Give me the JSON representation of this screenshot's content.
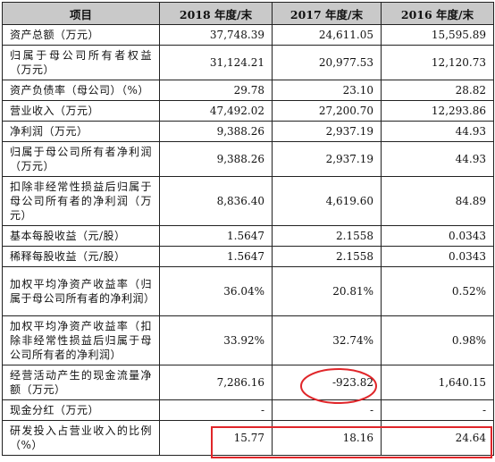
{
  "table": {
    "headers": [
      "项目",
      "2018 年度/末",
      "2017 年度/末",
      "2016 年度/末"
    ],
    "rows": [
      {
        "label": "资产总额（万元）",
        "values": [
          "37,748.39",
          "24,611.05",
          "15,595.89"
        ]
      },
      {
        "label": "归属于母公司所有者权益（万元）",
        "values": [
          "31,124.21",
          "20,977.53",
          "12,120.73"
        ]
      },
      {
        "label": "资产负债率（母公司）（%）",
        "values": [
          "29.78",
          "23.10",
          "28.82"
        ]
      },
      {
        "label": "营业收入（万元）",
        "values": [
          "47,492.02",
          "27,200.70",
          "12,293.86"
        ]
      },
      {
        "label": "净利润（万元）",
        "values": [
          "9,388.26",
          "2,937.19",
          "44.93"
        ]
      },
      {
        "label": "归属于母公司所有者净利润（万元）",
        "values": [
          "9,388.26",
          "2,937.19",
          "44.93"
        ]
      },
      {
        "label": "扣除非经常性损益后归属于母公司所有者的净利润（万元）",
        "values": [
          "8,836.40",
          "4,619.60",
          "84.89"
        ]
      },
      {
        "label": "基本每股收益（元/股）",
        "values": [
          "1.5647",
          "2.1558",
          "0.0343"
        ]
      },
      {
        "label": "稀释每股收益（元/股）",
        "values": [
          "1.5647",
          "2.1558",
          "0.0343"
        ]
      },
      {
        "label": "加权平均净资产收益率（归属于母公司所有者的净利润）",
        "values": [
          "36.04%",
          "20.81%",
          "0.52%"
        ]
      },
      {
        "label": "加权平均净资产收益率（扣除非经常性损益后归属于母公司所有者的净利润）",
        "values": [
          "33.92%",
          "32.74%",
          "0.98%"
        ]
      },
      {
        "label": "经营活动产生的现金流量净额（万元）",
        "values": [
          "7,286.16",
          "-923.82",
          "1,640.15"
        ]
      },
      {
        "label": "现金分红（万元）",
        "values": [
          "-",
          "-",
          "-"
        ]
      },
      {
        "label": "研发投入占营业收入的比例（%）",
        "values": [
          "15.77",
          "18.16",
          "24.64"
        ]
      }
    ]
  },
  "annotations": {
    "color": "#e0262a"
  }
}
